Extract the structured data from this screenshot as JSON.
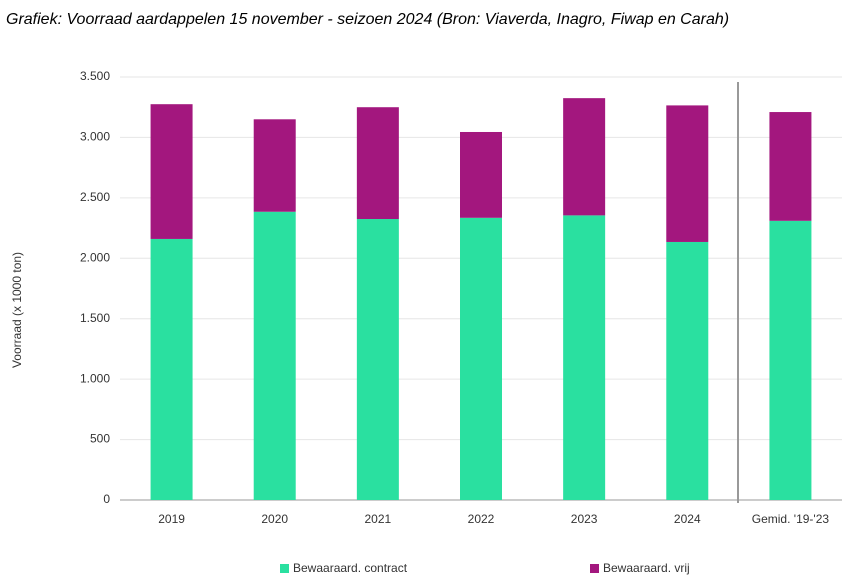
{
  "chart_data": {
    "type": "stacked-bar",
    "title": "Grafiek: Voorraad aardappelen 15 november - seizoen 2024 (Bron: Viaverda, Inagro, Fiwap en Carah)",
    "y_label": "Voorraad (x 1000 ton)",
    "categories": [
      "2019",
      "2020",
      "2021",
      "2022",
      "2023",
      "2024",
      "Gemid. '19-'23"
    ],
    "series": [
      {
        "name": "Bewaaraard. contract",
        "color": "#2ae0a0",
        "values": [
          2160,
          2385,
          2325,
          2335,
          2355,
          2135,
          2310
        ]
      },
      {
        "name": "Bewaaraard. vrij",
        "color": "#a3177e",
        "values": [
          1115,
          765,
          925,
          710,
          970,
          1130,
          900
        ]
      }
    ],
    "ylim": [
      0,
      3500
    ],
    "yticks": [
      0,
      500,
      {
        "value": 1000,
        "label": "1.000"
      },
      {
        "value": 1500,
        "label": "1.500"
      },
      {
        "value": 2000,
        "label": "2.000"
      },
      {
        "value": 2500,
        "label": "2.500"
      },
      {
        "value": 3000,
        "label": "3.000"
      },
      {
        "value": 3500,
        "label": "3.500"
      }
    ],
    "grid": true
  }
}
